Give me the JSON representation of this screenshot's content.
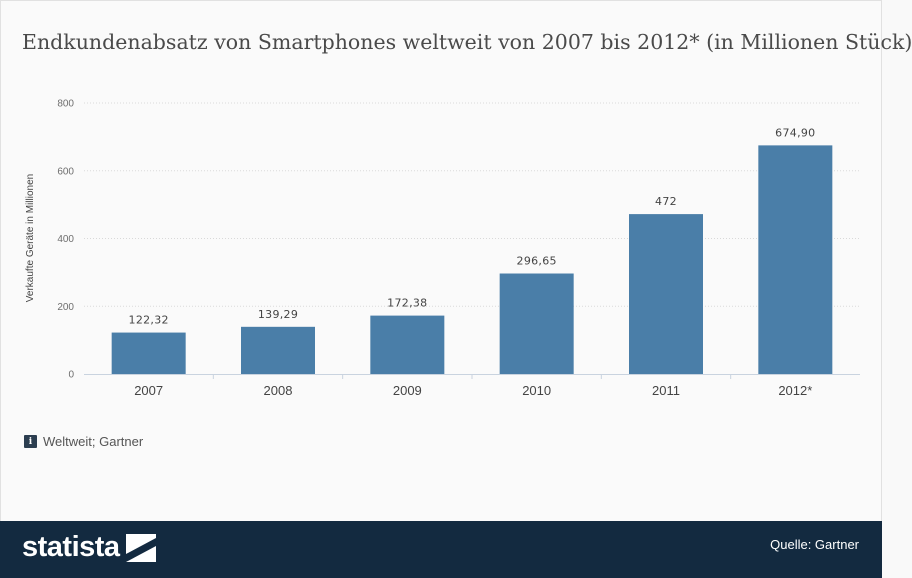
{
  "title": "Endkundenabsatz von Smartphones weltweit von 2007 bis 2012* (in Millionen Stück)",
  "note": {
    "icon": "info-icon",
    "text": "Weltweit; Gartner"
  },
  "footer": {
    "brand": "statista",
    "source": "Quelle: Gartner"
  },
  "colors": {
    "bar": "#4a7ea8",
    "footer": "#132a40",
    "grid": "#d9d9d9"
  },
  "chart_data": {
    "type": "bar",
    "categories": [
      "2007",
      "2008",
      "2009",
      "2010",
      "2011",
      "2012*"
    ],
    "values": [
      122.32,
      139.29,
      172.38,
      296.65,
      472,
      674.9
    ],
    "value_labels": [
      "122,32",
      "139,29",
      "172,38",
      "296,65",
      "472",
      "674,90"
    ],
    "ylabel": "Verkaufte Geräte in Millionen",
    "ylim": [
      0,
      800
    ],
    "yticks": [
      0,
      200,
      400,
      600,
      800
    ],
    "grid": true,
    "legend": "none"
  }
}
